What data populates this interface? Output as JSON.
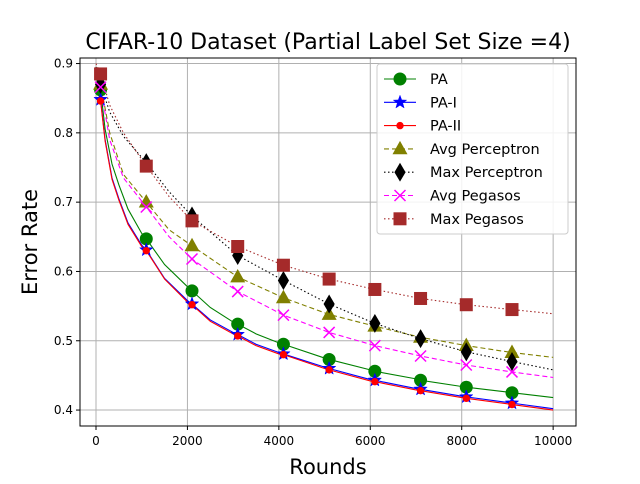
{
  "chart_data": {
    "type": "line",
    "title": "CIFAR-10 Dataset (Partial Label Set Size =4)",
    "xlabel": "Rounds",
    "ylabel": "Error Rate",
    "xlim": [
      -350,
      10500
    ],
    "ylim": [
      0.377,
      0.908
    ],
    "xticks": [
      0,
      2000,
      4000,
      6000,
      8000,
      10000
    ],
    "xtick_labels": [
      "0",
      "2000",
      "4000",
      "6000",
      "8000",
      "10000"
    ],
    "yticks": [
      0.4,
      0.5,
      0.6,
      0.7,
      0.8,
      0.9
    ],
    "ytick_labels": [
      "0.4",
      "0.5",
      "0.6",
      "0.7",
      "0.8",
      "0.9"
    ],
    "grid": true,
    "legend_position": "top-right",
    "marker_x": [
      100,
      1100,
      2100,
      3100,
      4100,
      5100,
      6100,
      7100,
      8100,
      9100
    ],
    "series": [
      {
        "name": "PA",
        "color": "#008000",
        "dash": "solid",
        "marker": "circle",
        "x": [
          0,
          100,
          200,
          350,
          500,
          700,
          1000,
          1100,
          1500,
          2000,
          2100,
          2500,
          3000,
          3100,
          3500,
          4000,
          4100,
          5000,
          5100,
          6000,
          6100,
          7000,
          7100,
          8000,
          8100,
          9000,
          9100,
          10000
        ],
        "y": [
          0.88,
          0.862,
          0.805,
          0.755,
          0.725,
          0.69,
          0.655,
          0.647,
          0.61,
          0.578,
          0.572,
          0.548,
          0.527,
          0.524,
          0.51,
          0.497,
          0.495,
          0.475,
          0.473,
          0.458,
          0.456,
          0.445,
          0.443,
          0.434,
          0.433,
          0.426,
          0.425,
          0.418
        ]
      },
      {
        "name": "PA-I",
        "color": "#0000ff",
        "dash": "solid",
        "marker": "star",
        "x": [
          0,
          100,
          200,
          350,
          500,
          700,
          1000,
          1100,
          1500,
          2000,
          2100,
          2500,
          3000,
          3100,
          3500,
          4000,
          4100,
          5000,
          5100,
          6000,
          6100,
          7000,
          7100,
          8000,
          8100,
          9000,
          9100,
          10000
        ],
        "y": [
          0.87,
          0.848,
          0.79,
          0.735,
          0.705,
          0.67,
          0.638,
          0.631,
          0.59,
          0.558,
          0.553,
          0.53,
          0.512,
          0.509,
          0.495,
          0.483,
          0.481,
          0.462,
          0.46,
          0.444,
          0.443,
          0.431,
          0.43,
          0.42,
          0.419,
          0.411,
          0.41,
          0.402
        ]
      },
      {
        "name": "PA-II",
        "color": "#ff0000",
        "dash": "solid",
        "marker": "dot",
        "x": [
          0,
          100,
          200,
          350,
          500,
          700,
          1000,
          1100,
          1500,
          2000,
          2100,
          2500,
          3000,
          3100,
          3500,
          4000,
          4100,
          5000,
          5100,
          6000,
          6100,
          7000,
          7100,
          8000,
          8100,
          9000,
          9100,
          10000
        ],
        "y": [
          0.868,
          0.846,
          0.788,
          0.733,
          0.703,
          0.668,
          0.636,
          0.63,
          0.589,
          0.556,
          0.552,
          0.528,
          0.51,
          0.507,
          0.493,
          0.481,
          0.48,
          0.46,
          0.458,
          0.442,
          0.441,
          0.429,
          0.428,
          0.418,
          0.417,
          0.409,
          0.408,
          0.4
        ]
      },
      {
        "name": "Avg Perceptron",
        "color": "#808000",
        "dash": "dashed",
        "marker": "triangle",
        "x": [
          0,
          100,
          300,
          600,
          1100,
          1600,
          2100,
          3100,
          4100,
          5100,
          6100,
          7100,
          8100,
          9100,
          10000
        ],
        "y": [
          0.895,
          0.87,
          0.8,
          0.74,
          0.7,
          0.66,
          0.637,
          0.592,
          0.562,
          0.538,
          0.521,
          0.505,
          0.493,
          0.483,
          0.476
        ]
      },
      {
        "name": "Max Perceptron",
        "color": "#000000",
        "dash": "dotted",
        "marker": "diamond",
        "x": [
          0,
          100,
          300,
          600,
          1100,
          1600,
          2100,
          3100,
          4100,
          5100,
          6100,
          7100,
          8100,
          9100,
          10000
        ],
        "y": [
          0.895,
          0.87,
          0.83,
          0.795,
          0.757,
          0.715,
          0.68,
          0.623,
          0.587,
          0.553,
          0.525,
          0.503,
          0.484,
          0.47,
          0.458
        ]
      },
      {
        "name": "Avg Pegasos",
        "color": "#ff00ff",
        "dash": "dashed",
        "marker": "x",
        "x": [
          0,
          100,
          300,
          600,
          1100,
          1600,
          2100,
          3100,
          4100,
          5100,
          6100,
          7100,
          8100,
          9100,
          10000
        ],
        "y": [
          0.89,
          0.866,
          0.79,
          0.735,
          0.693,
          0.65,
          0.618,
          0.571,
          0.537,
          0.512,
          0.493,
          0.478,
          0.465,
          0.455,
          0.447
        ]
      },
      {
        "name": "Max Pegasos",
        "color": "#a52a2a",
        "dash": "dotted",
        "marker": "square",
        "x": [
          0,
          100,
          300,
          600,
          1100,
          1600,
          2100,
          3100,
          4100,
          5100,
          6100,
          7100,
          8100,
          9100,
          10000
        ],
        "y": [
          0.9,
          0.885,
          0.84,
          0.8,
          0.752,
          0.708,
          0.673,
          0.636,
          0.609,
          0.589,
          0.574,
          0.561,
          0.552,
          0.545,
          0.539
        ]
      }
    ]
  }
}
